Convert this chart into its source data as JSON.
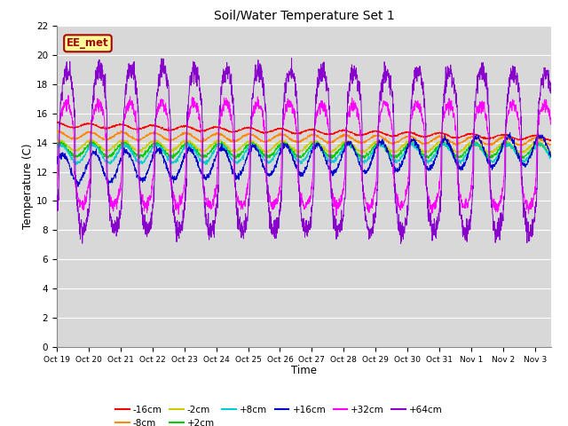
{
  "title": "Soil/Water Temperature Set 1",
  "xlabel": "Time",
  "ylabel": "Temperature (C)",
  "ylim": [
    0,
    22
  ],
  "yticks": [
    0,
    2,
    4,
    6,
    8,
    10,
    12,
    14,
    16,
    18,
    20,
    22
  ],
  "plot_bg_color": "#d8d8d8",
  "series": [
    {
      "label": "-16cm",
      "color": "#ff0000"
    },
    {
      "label": "-8cm",
      "color": "#ff8800"
    },
    {
      "label": "-2cm",
      "color": "#cccc00"
    },
    {
      "label": "+2cm",
      "color": "#00cc00"
    },
    {
      "label": "+8cm",
      "color": "#00cccc"
    },
    {
      "label": "+16cm",
      "color": "#0000cc"
    },
    {
      "label": "+32cm",
      "color": "#ff00ff"
    },
    {
      "label": "+64cm",
      "color": "#8800cc"
    }
  ],
  "date_labels": [
    "Oct 19",
    "Oct 20",
    "Oct 21",
    "Oct 22",
    "Oct 23",
    "Oct 24",
    "Oct 25",
    "Oct 26",
    "Oct 27",
    "Oct 28",
    "Oct 29",
    "Oct 30",
    "Oct 31",
    "Nov 1",
    "Nov 2",
    "Nov 3"
  ],
  "annotation_text": "EE_met",
  "annotation_bg": "#ffff99",
  "annotation_border": "#aa0000",
  "series_params": [
    {
      "label": "-16cm",
      "base": 15.2,
      "amp": 0.15,
      "trend": -0.058,
      "phase": 1.5,
      "noise": 0.03,
      "sharp": false
    },
    {
      "label": "-8cm",
      "base": 14.5,
      "amp": 0.25,
      "trend": -0.028,
      "phase": 1.3,
      "noise": 0.04,
      "sharp": false
    },
    {
      "label": "-2cm",
      "base": 13.8,
      "amp": 0.35,
      "trend": -0.008,
      "phase": 1.1,
      "noise": 0.05,
      "sharp": false
    },
    {
      "label": "+2cm",
      "base": 13.5,
      "amp": 0.45,
      "trend": -0.003,
      "phase": 0.9,
      "noise": 0.06,
      "sharp": false
    },
    {
      "label": "+8cm",
      "base": 13.2,
      "amp": 0.6,
      "trend": 0.008,
      "phase": 0.7,
      "noise": 0.07,
      "sharp": false
    },
    {
      "label": "+16cm",
      "base": 12.2,
      "amp": 1.0,
      "trend": 0.085,
      "phase": 0.5,
      "noise": 0.1,
      "sharp": false
    },
    {
      "label": "+32cm",
      "base": 13.2,
      "amp": 3.5,
      "trend": -0.008,
      "phase": -0.3,
      "noise": 0.2,
      "sharp": true
    },
    {
      "label": "+64cm",
      "base": 13.5,
      "amp": 5.5,
      "trend": -0.012,
      "phase": -0.5,
      "noise": 0.35,
      "sharp": true
    }
  ]
}
